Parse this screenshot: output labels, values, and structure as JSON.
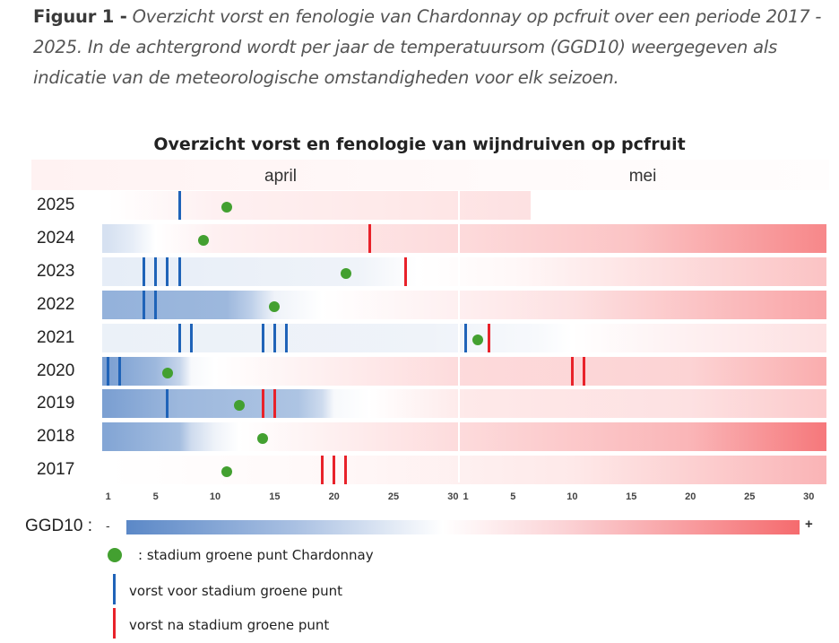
{
  "caption": {
    "label": "Figuur 1 -",
    "text": "Overzicht vorst en fenologie van Chardonnay op pcfruit over een periode 2017 - 2025. In de achtergrond wordt per jaar de temperatuursom (GGD10) weergegeven als indicatie van de meteorologische omstandigheden voor elk seizoen."
  },
  "colors": {
    "frost_before": "#1f63b8",
    "frost_after": "#e8222a",
    "green_point": "#43a030",
    "ggd_low": "#5b88c7",
    "ggd_mid": "#ffffff",
    "ggd_high": "#f56b6e"
  },
  "chart_data": {
    "type": "table",
    "title": "Overzicht vorst en fenologie van wijndruiven op pcfruit",
    "months": [
      "april",
      "mei"
    ],
    "ticks": {
      "april": [
        "1",
        "5",
        "10",
        "15",
        "20",
        "25",
        "30"
      ],
      "mei": [
        "1",
        "5",
        "10",
        "15",
        "20",
        "25",
        "30"
      ]
    },
    "x_range": [
      "april 1",
      "mei 31"
    ],
    "legend": {
      "ggd_label": "GGD10 :",
      "ggd_minus": "-",
      "ggd_plus": "+",
      "green_point": ": stadium groene punt Chardonnay",
      "frost_before": "vorst voor stadium groene punt",
      "frost_after": "vorst na stadium groene punt"
    },
    "rows": [
      {
        "year": "2025",
        "end_day": 36,
        "green_point": 11,
        "frost_before": [
          7
        ],
        "frost_after": [],
        "ggd": [
          [
            1,
            0.0
          ],
          [
            10,
            0.1
          ],
          [
            25,
            0.15
          ],
          [
            36,
            0.2
          ]
        ]
      },
      {
        "year": "2024",
        "end_day": 61,
        "green_point": 9,
        "frost_before": [],
        "frost_after": [
          23
        ],
        "ggd": [
          [
            1,
            -0.25
          ],
          [
            3,
            -0.15
          ],
          [
            5,
            0.0
          ],
          [
            10,
            0.1
          ],
          [
            31,
            0.25
          ],
          [
            45,
            0.4
          ],
          [
            61,
            0.8
          ]
        ]
      },
      {
        "year": "2023",
        "end_day": 61,
        "green_point": 21,
        "frost_before": [
          4,
          5,
          6,
          7
        ],
        "frost_after": [
          26
        ],
        "ggd": [
          [
            1,
            -0.15
          ],
          [
            22,
            -0.1
          ],
          [
            27,
            0.0
          ],
          [
            35,
            0.05
          ],
          [
            61,
            0.4
          ]
        ]
      },
      {
        "year": "2022",
        "end_day": 61,
        "green_point": 15,
        "frost_before": [
          4,
          5
        ],
        "frost_after": [],
        "ggd": [
          [
            1,
            -0.65
          ],
          [
            11,
            -0.6
          ],
          [
            13,
            -0.4
          ],
          [
            15,
            -0.1
          ],
          [
            19,
            0.0
          ],
          [
            30,
            0.1
          ],
          [
            40,
            0.2
          ],
          [
            61,
            0.6
          ]
        ]
      },
      {
        "year": "2021",
        "end_day": 61,
        "green_point": 32,
        "frost_before": [
          7,
          8,
          14,
          15,
          16,
          31
        ],
        "frost_after": [
          33
        ],
        "ggd": [
          [
            1,
            -0.12
          ],
          [
            28,
            -0.1
          ],
          [
            37,
            -0.05
          ],
          [
            40,
            0.0
          ],
          [
            50,
            0.1
          ],
          [
            61,
            0.2
          ]
        ]
      },
      {
        "year": "2020",
        "end_day": 61,
        "green_point": 6,
        "frost_before": [
          1,
          2
        ],
        "frost_after": [
          40,
          41
        ],
        "ggd": [
          [
            1,
            -0.8
          ],
          [
            5,
            -0.6
          ],
          [
            7,
            -0.35
          ],
          [
            8,
            -0.05
          ],
          [
            10,
            0.0
          ],
          [
            31,
            0.25
          ],
          [
            50,
            0.3
          ],
          [
            61,
            0.55
          ]
        ]
      },
      {
        "year": "2019",
        "end_day": 61,
        "green_point": 12,
        "frost_before": [
          6
        ],
        "frost_after": [
          14,
          15
        ],
        "ggd": [
          [
            1,
            -0.8
          ],
          [
            7,
            -0.6
          ],
          [
            17,
            -0.5
          ],
          [
            19,
            -0.3
          ],
          [
            20,
            -0.05
          ],
          [
            23,
            0.0
          ],
          [
            31,
            0.15
          ],
          [
            50,
            0.2
          ],
          [
            61,
            0.35
          ]
        ]
      },
      {
        "year": "2018",
        "end_day": 61,
        "green_point": 14,
        "frost_before": [],
        "frost_after": [],
        "ggd": [
          [
            1,
            -0.75
          ],
          [
            7,
            -0.55
          ],
          [
            8,
            -0.3
          ],
          [
            10,
            -0.1
          ],
          [
            12,
            0.0
          ],
          [
            31,
            0.25
          ],
          [
            50,
            0.5
          ],
          [
            61,
            0.9
          ]
        ]
      },
      {
        "year": "2017",
        "end_day": 61,
        "green_point": 11,
        "frost_before": [],
        "frost_after": [
          19,
          20,
          21
        ],
        "ggd": [
          [
            1,
            0.0
          ],
          [
            20,
            0.05
          ],
          [
            40,
            0.15
          ],
          [
            61,
            0.5
          ]
        ]
      }
    ]
  }
}
